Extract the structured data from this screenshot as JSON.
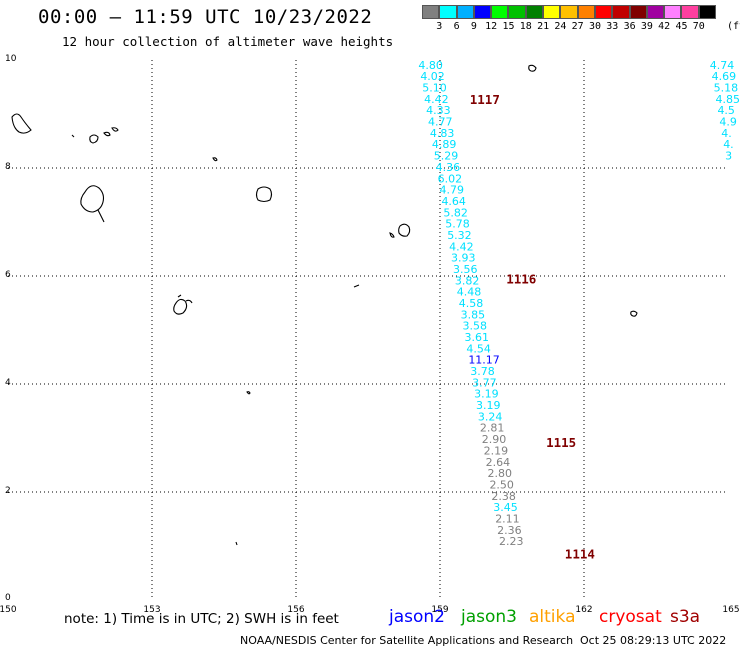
{
  "title": "00:00 — 11:59 UTC 10/23/2022",
  "subtitle": "12 hour collection of altimeter wave heights",
  "legend": {
    "colors": [
      "#808080",
      "#00ffff",
      "#00b0ff",
      "#0000ff",
      "#00ff00",
      "#00c000",
      "#008000",
      "#ffff00",
      "#ffc000",
      "#ff8000",
      "#ff0000",
      "#c00000",
      "#800000",
      "#a000a0",
      "#ff80ff",
      "#ff40a0",
      "#000000"
    ],
    "labels": [
      "3",
      "6",
      "9",
      "12",
      "15",
      "18",
      "21",
      "24",
      "27",
      "30",
      "33",
      "36",
      "39",
      "42",
      "45",
      "70"
    ],
    "unit": "(ft)"
  },
  "axes": {
    "x_ticks": [
      "150",
      "153",
      "156",
      "159",
      "162",
      "165"
    ],
    "x_values": [
      150,
      153,
      156,
      159,
      162,
      165
    ],
    "y_ticks": [
      "0",
      "2",
      "4",
      "6",
      "8",
      "10"
    ],
    "y_values": [
      0,
      2,
      4,
      6,
      8,
      10
    ],
    "xlim": [
      150,
      165
    ],
    "ylim": [
      0,
      10
    ],
    "grid": true
  },
  "chart_data": {
    "type": "scatter",
    "points": [
      {
        "x": 158.55,
        "y": 9.91,
        "label": "4.80",
        "color": "#00e0ff"
      },
      {
        "x": 158.59,
        "y": 9.7,
        "label": "4.02",
        "color": "#00e0ff"
      },
      {
        "x": 158.63,
        "y": 9.49,
        "label": "5.10",
        "color": "#00e0ff"
      },
      {
        "x": 158.67,
        "y": 9.28,
        "label": "4.42",
        "color": "#00e0ff"
      },
      {
        "x": 158.71,
        "y": 9.07,
        "label": "4.33",
        "color": "#00e0ff"
      },
      {
        "x": 158.75,
        "y": 8.86,
        "label": "4.77",
        "color": "#00e0ff"
      },
      {
        "x": 158.79,
        "y": 8.65,
        "label": "4.83",
        "color": "#00e0ff"
      },
      {
        "x": 158.83,
        "y": 8.44,
        "label": "4.89",
        "color": "#00e0ff"
      },
      {
        "x": 158.87,
        "y": 8.23,
        "label": "5.29",
        "color": "#00e0ff"
      },
      {
        "x": 158.91,
        "y": 8.02,
        "label": "4.36",
        "color": "#00e0ff"
      },
      {
        "x": 158.95,
        "y": 7.81,
        "label": "6.02",
        "color": "#00e0ff"
      },
      {
        "x": 158.99,
        "y": 7.6,
        "label": "4.79",
        "color": "#00e0ff"
      },
      {
        "x": 159.03,
        "y": 7.39,
        "label": "4.64",
        "color": "#00e0ff"
      },
      {
        "x": 159.07,
        "y": 7.18,
        "label": "5.82",
        "color": "#00e0ff"
      },
      {
        "x": 159.11,
        "y": 6.97,
        "label": "5.78",
        "color": "#00e0ff"
      },
      {
        "x": 159.15,
        "y": 6.76,
        "label": "5.32",
        "color": "#00e0ff"
      },
      {
        "x": 159.19,
        "y": 6.55,
        "label": "4.42",
        "color": "#00e0ff"
      },
      {
        "x": 159.23,
        "y": 6.34,
        "label": "3.93",
        "color": "#00e0ff"
      },
      {
        "x": 159.27,
        "y": 6.13,
        "label": "3.56",
        "color": "#00e0ff"
      },
      {
        "x": 159.31,
        "y": 5.92,
        "label": "3.82",
        "color": "#00e0ff"
      },
      {
        "x": 159.35,
        "y": 5.71,
        "label": "4.48",
        "color": "#00e0ff"
      },
      {
        "x": 159.39,
        "y": 5.5,
        "label": "4.58",
        "color": "#00e0ff"
      },
      {
        "x": 159.43,
        "y": 5.29,
        "label": "3.85",
        "color": "#00e0ff"
      },
      {
        "x": 159.47,
        "y": 5.08,
        "label": "3.58",
        "color": "#00e0ff"
      },
      {
        "x": 159.51,
        "y": 4.87,
        "label": "3.61",
        "color": "#00e0ff"
      },
      {
        "x": 159.55,
        "y": 4.66,
        "label": "4.54",
        "color": "#00e0ff"
      },
      {
        "x": 159.59,
        "y": 4.45,
        "label": "11.17",
        "color": "#0000ff"
      },
      {
        "x": 159.63,
        "y": 4.24,
        "label": "3.78",
        "color": "#00e0ff"
      },
      {
        "x": 159.67,
        "y": 4.03,
        "label": "3.77",
        "color": "#00e0ff"
      },
      {
        "x": 159.71,
        "y": 3.82,
        "label": "3.19",
        "color": "#00e0ff"
      },
      {
        "x": 159.75,
        "y": 3.61,
        "label": "3.19",
        "color": "#00e0ff"
      },
      {
        "x": 159.79,
        "y": 3.4,
        "label": "3.24",
        "color": "#00e0ff"
      },
      {
        "x": 159.83,
        "y": 3.19,
        "label": "2.81",
        "color": "#808080"
      },
      {
        "x": 159.87,
        "y": 2.98,
        "label": "2.90",
        "color": "#808080"
      },
      {
        "x": 159.91,
        "y": 2.77,
        "label": "2.19",
        "color": "#808080"
      },
      {
        "x": 159.95,
        "y": 2.56,
        "label": "2.64",
        "color": "#808080"
      },
      {
        "x": 159.99,
        "y": 2.35,
        "label": "2.80",
        "color": "#808080"
      },
      {
        "x": 160.03,
        "y": 2.14,
        "label": "2.50",
        "color": "#808080"
      },
      {
        "x": 160.07,
        "y": 1.93,
        "label": "2.38",
        "color": "#808080"
      },
      {
        "x": 160.11,
        "y": 1.72,
        "label": "3.45",
        "color": "#00e0ff"
      },
      {
        "x": 160.15,
        "y": 1.51,
        "label": "2.11",
        "color": "#808080"
      },
      {
        "x": 160.19,
        "y": 1.3,
        "label": "2.36",
        "color": "#808080"
      },
      {
        "x": 160.23,
        "y": 1.09,
        "label": "2.23",
        "color": "#808080"
      },
      {
        "x": 164.62,
        "y": 9.91,
        "label": "4.74",
        "color": "#00e0ff"
      },
      {
        "x": 164.66,
        "y": 9.7,
        "label": "4.69",
        "color": "#00e0ff"
      },
      {
        "x": 164.7,
        "y": 9.49,
        "label": "5.18",
        "color": "#00e0ff"
      },
      {
        "x": 164.74,
        "y": 9.28,
        "label": "4.85",
        "color": "#00e0ff"
      },
      {
        "x": 164.78,
        "y": 9.07,
        "label": "4.5",
        "color": "#00e0ff"
      },
      {
        "x": 164.82,
        "y": 8.86,
        "label": "4.9",
        "color": "#00e0ff"
      },
      {
        "x": 164.86,
        "y": 8.65,
        "label": "4.",
        "color": "#00e0ff"
      },
      {
        "x": 164.9,
        "y": 8.44,
        "label": "4.",
        "color": "#00e0ff"
      },
      {
        "x": 164.94,
        "y": 8.23,
        "label": "3",
        "color": "#00e0ff"
      }
    ],
    "time_markers": [
      {
        "x": 159.62,
        "y": 9.28,
        "label": "1117"
      },
      {
        "x": 160.38,
        "y": 5.95,
        "label": "1116"
      },
      {
        "x": 161.21,
        "y": 2.93,
        "label": "1115"
      },
      {
        "x": 161.6,
        "y": 0.86,
        "label": "1114"
      }
    ]
  },
  "note": "note: 1) Time is in UTC; 2) SWH is in feet",
  "satellites": [
    {
      "name": "jason2",
      "color": "#0000ff"
    },
    {
      "name": "jason3",
      "color": "#00a000"
    },
    {
      "name": "altika",
      "color": "#ffa000"
    },
    {
      "name": "cryosat",
      "color": "#ff0000"
    },
    {
      "name": "s3a",
      "color": "#a00000"
    }
  ],
  "footer": {
    "credit": "NOAA/NESDIS Center for Satellite Applications and Research",
    "timestamp": "Oct 25 08:29:13 UTC 2022"
  }
}
